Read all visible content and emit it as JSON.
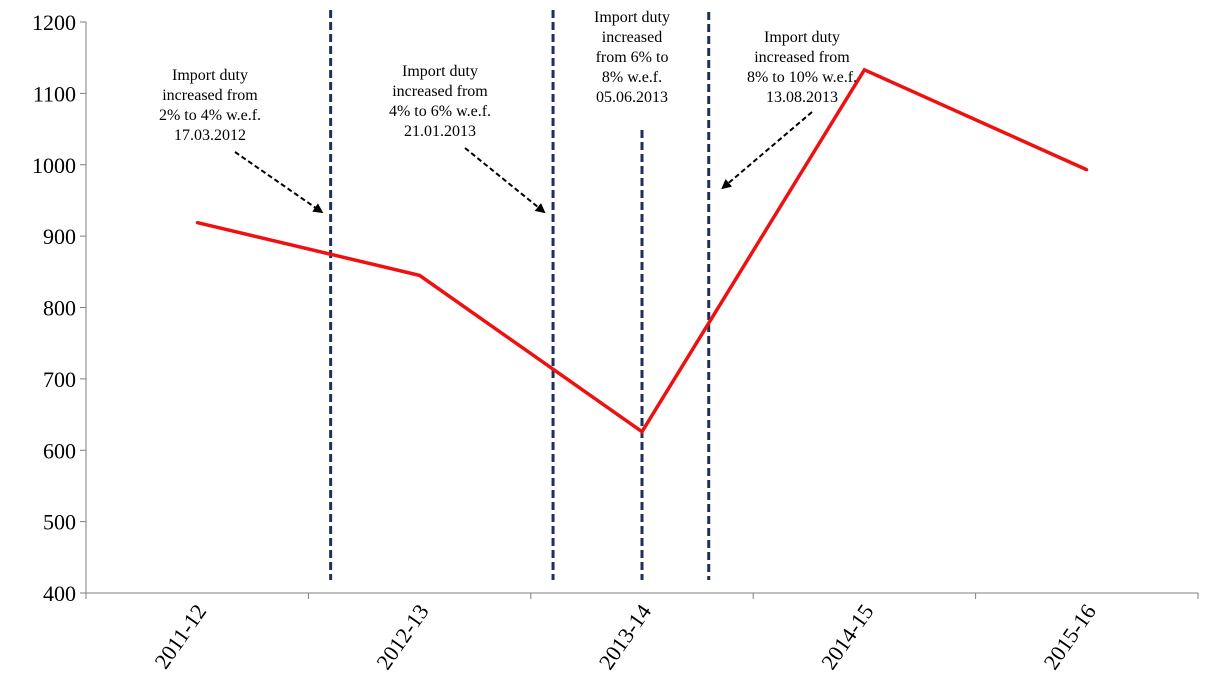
{
  "chart_data": {
    "type": "line",
    "title": "",
    "xlabel": "",
    "ylabel": "",
    "categories": [
      "2011-12",
      "2012-13",
      "2013-14",
      "2014-15",
      "2015-16"
    ],
    "series": [
      {
        "values": [
          919,
          845,
          626,
          1133,
          993
        ],
        "color": "#ee1111"
      }
    ],
    "ylim": [
      400,
      1200
    ],
    "yticks": [
      "400",
      "500",
      "600",
      "700",
      "800",
      "900",
      "1000",
      "1100",
      "1200"
    ],
    "grid": false,
    "annotations": [
      {
        "lines": [
          "Import duty",
          "increased from",
          "2% to 4% w.e.f.",
          "17.03.2012"
        ],
        "marker_x": 1.6,
        "arrow": "down-right"
      },
      {
        "lines": [
          "Import duty",
          "increased from",
          "4% to 6% w.e.f.",
          "21.01.2013"
        ],
        "marker_x": 2.6,
        "arrow": "down-right"
      },
      {
        "lines": [
          "Import duty",
          "increased",
          "from 6% to",
          "8% w.e.f.",
          "05.06.2013"
        ],
        "marker_x": 3.0,
        "arrow": "none"
      },
      {
        "lines": [
          "Import duty",
          "increased from",
          "8% to 10% w.e.f.",
          "13.08.2013"
        ],
        "marker_x": 3.3,
        "arrow": "down-left"
      }
    ],
    "colors": {
      "series": "#ee1111",
      "markers": "#1f2f5c",
      "axis": "#7f7f7f"
    }
  }
}
